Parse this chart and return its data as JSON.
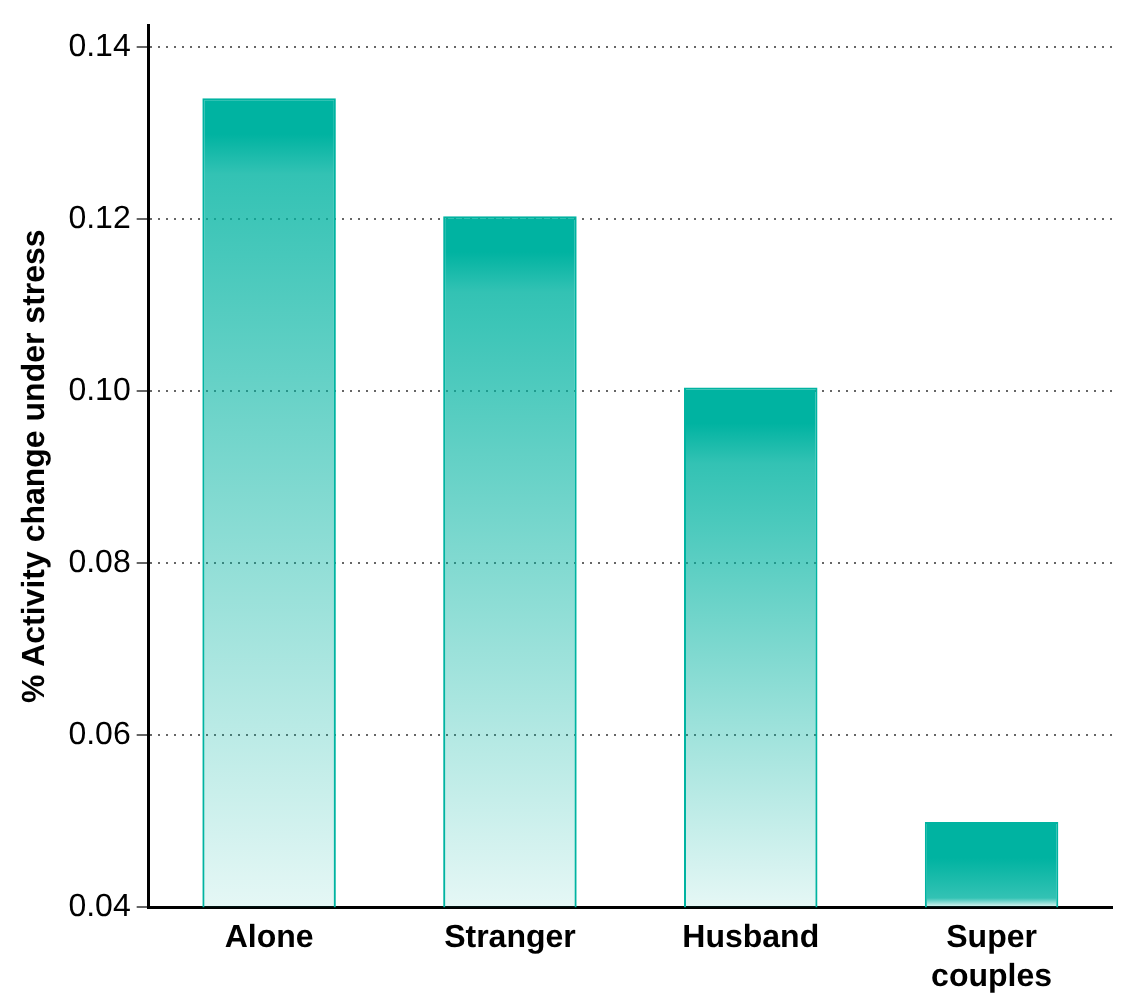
{
  "chart_data": {
    "type": "bar",
    "ylabel": "% Activity change under stress",
    "categories": [
      "Alone",
      "Stranger",
      "Husband",
      "Super couples"
    ],
    "values": [
      0.134,
      0.1203,
      0.1004,
      0.0499
    ],
    "color": "#00b3a1",
    "ylim": [
      0.04,
      0.1425
    ],
    "yticks": [
      {
        "value": 0.04,
        "label": "0.04"
      },
      {
        "value": 0.06,
        "label": "0.06"
      },
      {
        "value": 0.08,
        "label": "0.08"
      },
      {
        "value": 0.1,
        "label": "0.10"
      },
      {
        "value": 0.12,
        "label": "0.12"
      },
      {
        "value": 0.14,
        "label": "0.14"
      }
    ],
    "grid": "y"
  }
}
